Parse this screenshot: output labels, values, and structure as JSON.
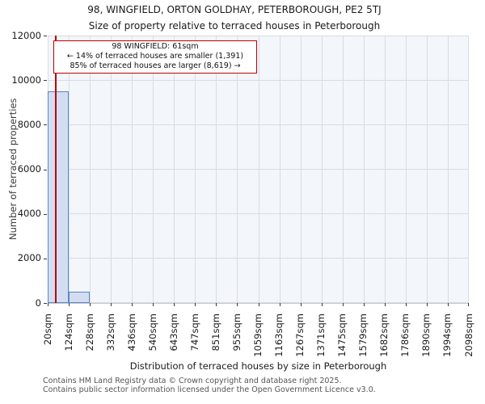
{
  "title": "98, WINGFIELD, ORTON GOLDHAY, PETERBOROUGH, PE2 5TJ",
  "subtitle": "Size of property relative to terraced houses in Peterborough",
  "annotation": {
    "line1": "98 WINGFIELD: 61sqm",
    "line2": "← 14% of terraced houses are smaller (1,391)",
    "line3": "85% of terraced houses are larger (8,619) →"
  },
  "footer": {
    "line1": "Contains HM Land Registry data © Crown copyright and database right 2025.",
    "line2": "Contains public sector information licensed under the Open Government Licence v3.0."
  },
  "chart_data": {
    "type": "bar",
    "title": "98, WINGFIELD, ORTON GOLDHAY, PETERBOROUGH, PE2 5TJ",
    "subtitle": "Size of property relative to terraced houses in Peterborough",
    "xlabel": "Distribution of terraced houses by size in Peterborough",
    "ylabel": "Number of terraced properties",
    "ylim": [
      0,
      12000
    ],
    "yticks": [
      0,
      2000,
      4000,
      6000,
      8000,
      10000,
      12000
    ],
    "bin_edges_sqm": [
      20,
      124,
      228,
      332,
      436,
      540,
      643,
      747,
      851,
      955,
      1059,
      1163,
      1267,
      1371,
      1475,
      1579,
      1682,
      1786,
      1890,
      1994,
      2098
    ],
    "x_tick_labels": [
      "20sqm",
      "124sqm",
      "228sqm",
      "332sqm",
      "436sqm",
      "540sqm",
      "643sqm",
      "747sqm",
      "851sqm",
      "955sqm",
      "1059sqm",
      "1163sqm",
      "1267sqm",
      "1371sqm",
      "1475sqm",
      "1579sqm",
      "1682sqm",
      "1786sqm",
      "1890sqm",
      "1994sqm",
      "2098sqm"
    ],
    "values": [
      9500,
      500,
      0,
      0,
      0,
      0,
      0,
      0,
      0,
      0,
      0,
      0,
      0,
      0,
      0,
      0,
      0,
      0,
      0,
      0
    ],
    "marker_value_sqm": 61,
    "grid": true,
    "legend": "none",
    "colors": {
      "bar_fill": "#d3ddf2",
      "bar_edge": "#5b87c5",
      "marker_line": "#bb0000",
      "annotation_border": "#bb0000",
      "grid": "#d8dce3",
      "plot_bg": "#f3f6fb"
    }
  }
}
